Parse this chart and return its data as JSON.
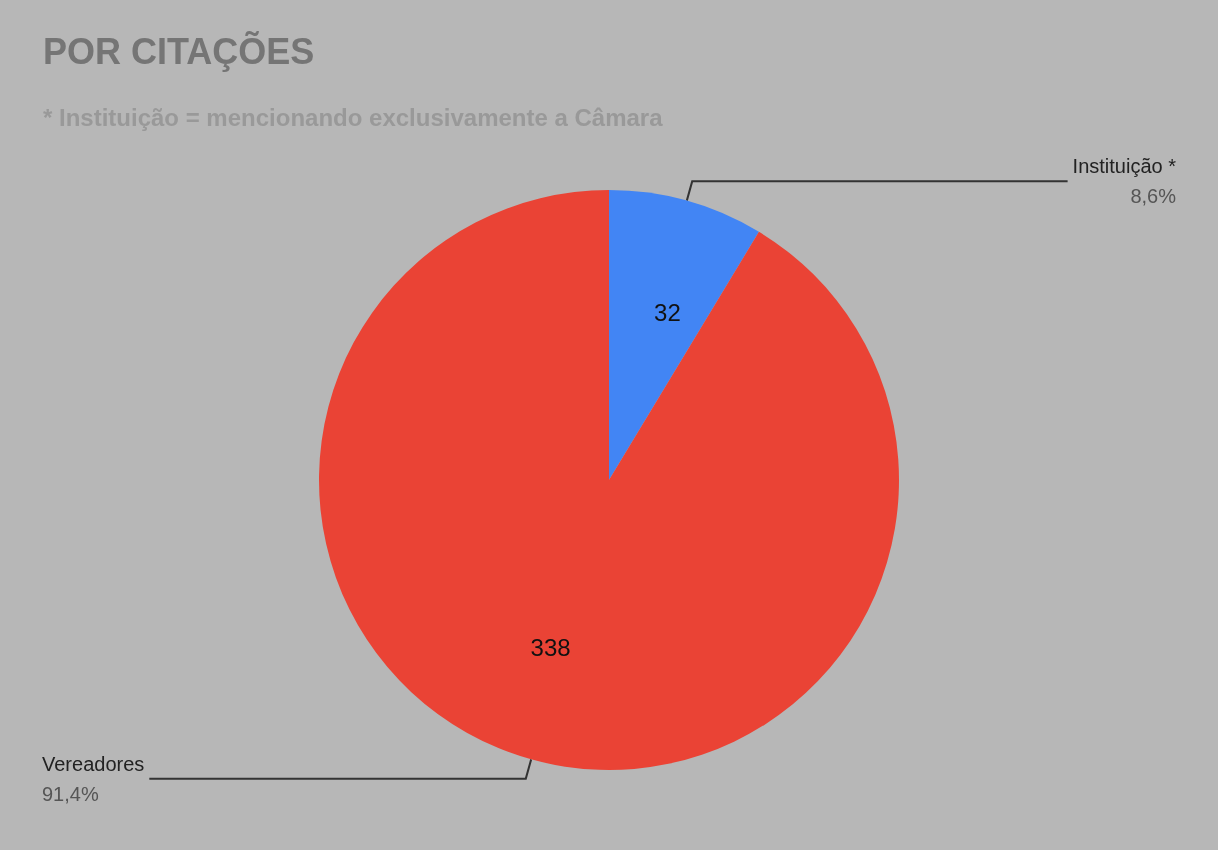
{
  "chart_data": {
    "type": "pie",
    "title": "POR CITAÇÕES",
    "subtitle": "* Instituição = mencionando exclusivamente a Câmara",
    "categories": [
      "Instituição *",
      "Vereadores"
    ],
    "values": [
      32,
      338
    ],
    "colors": [
      "#4285f4",
      "#ea4335"
    ],
    "data_labels": true,
    "annotations": [
      "8,6%",
      "91,4%"
    ],
    "legend": false
  }
}
